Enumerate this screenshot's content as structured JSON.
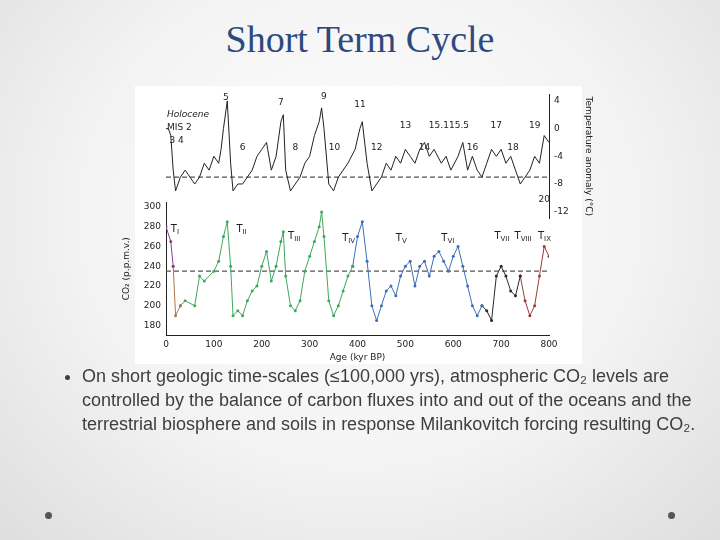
{
  "slide": {
    "title": "Short Term Cycle",
    "bullets": [
      "On short geologic time-scales (≤100,000 yrs), atmospheric CO₂ levels are controlled by the balance of carbon fluxes into and out of the oceans and the terrestrial biosphere and soils in response Milankovitch forcing resulting CO₂."
    ]
  },
  "chart_data": [
    {
      "type": "line",
      "y_label": "Temperature anomaly (°C)",
      "xlim": [
        0,
        800
      ],
      "ylim": [
        -13,
        5
      ],
      "yticks": [
        -12,
        -8,
        -4,
        0,
        4
      ],
      "grid": false,
      "tick_labels": "y",
      "series": [
        {
          "color": "#222222",
          "x": [
            0,
            5,
            10,
            15,
            20,
            25,
            30,
            40,
            50,
            60,
            70,
            80,
            90,
            100,
            110,
            115,
            120,
            128,
            135,
            140,
            150,
            160,
            170,
            180,
            190,
            200,
            210,
            220,
            230,
            240,
            245,
            250,
            260,
            270,
            280,
            290,
            300,
            310,
            320,
            325,
            330,
            340,
            350,
            360,
            370,
            380,
            395,
            405,
            410,
            420,
            430,
            440,
            450,
            460,
            470,
            480,
            490,
            500,
            510,
            520,
            530,
            540,
            550,
            560,
            575,
            585,
            595,
            610,
            620,
            630,
            640,
            650,
            660,
            670,
            680,
            690,
            700,
            710,
            720,
            730,
            740,
            750,
            760,
            770,
            780,
            790,
            800
          ],
          "values": [
            0,
            0,
            -1,
            -6,
            -9,
            -8,
            -7,
            -6,
            -7,
            -8,
            -7,
            -5,
            -6,
            -4,
            -5,
            -3,
            0,
            4,
            -5,
            -9,
            -8,
            -8,
            -7,
            -6,
            -4,
            -3,
            -2,
            -6,
            -4,
            1,
            2,
            -6,
            -9,
            -8,
            -7,
            -5,
            -4,
            -1,
            1,
            3,
            0,
            -8,
            -9,
            -7,
            -6,
            -5,
            -3,
            0,
            1,
            -5,
            -9,
            -8,
            -7,
            -5,
            -6,
            -4,
            -5,
            -3,
            -4,
            -5,
            -3,
            -2,
            -4,
            -3,
            -5,
            -4,
            -6,
            -4,
            -2,
            -6,
            -4,
            -6,
            -7,
            -5,
            -3,
            -4,
            -3,
            -5,
            -4,
            -6,
            -8,
            -7,
            -6,
            -4,
            -5,
            -1,
            -2
          ]
        },
        {
          "color": "#555555",
          "line_style": "dashed",
          "x": [
            0,
            800
          ],
          "values": [
            -7,
            -7
          ]
        }
      ],
      "annotations": [
        {
          "text": "Holocene",
          "x": 2,
          "y": 2
        },
        {
          "text": "MIS 2",
          "x": 2,
          "y": 0.2
        },
        {
          "text": "3 4",
          "x": 22,
          "y": -1.7
        },
        {
          "text": "5",
          "x": 125,
          "y": 4.5
        },
        {
          "text": "7",
          "x": 240,
          "y": 3.8
        },
        {
          "text": "9",
          "x": 330,
          "y": 4.6
        },
        {
          "text": "11",
          "x": 405,
          "y": 3.4
        },
        {
          "text": "13",
          "x": 500,
          "y": 0.4
        },
        {
          "text": "15.1",
          "x": 570,
          "y": 0.4
        },
        {
          "text": "15.5",
          "x": 612,
          "y": 0.4
        },
        {
          "text": "17",
          "x": 690,
          "y": 0.4
        },
        {
          "text": "19",
          "x": 770,
          "y": 0.4
        },
        {
          "text": "6",
          "x": 160,
          "y": -2.7
        },
        {
          "text": "8",
          "x": 270,
          "y": -2.7
        },
        {
          "text": "10",
          "x": 352,
          "y": -2.7
        },
        {
          "text": "12",
          "x": 440,
          "y": -2.7
        },
        {
          "text": "14",
          "x": 540,
          "y": -2.7
        },
        {
          "text": "16",
          "x": 640,
          "y": -2.7
        },
        {
          "text": "18",
          "x": 725,
          "y": -2.7
        },
        {
          "text": "20",
          "x": 790,
          "y": -10.3
        }
      ]
    },
    {
      "type": "line",
      "x_label": "Age (kyr BP)",
      "y_label": "CO₂ (p.p.m.v.)",
      "xlim": [
        0,
        800
      ],
      "xticks": [
        0,
        100,
        200,
        300,
        400,
        500,
        600,
        700,
        800
      ],
      "ylim": [
        170,
        305
      ],
      "yticks": [
        180,
        200,
        220,
        240,
        260,
        280,
        300
      ],
      "grid": false,
      "series": [
        {
          "color": "#8e3b91",
          "marker": "circle",
          "x": [
            0,
            10,
            15
          ],
          "values": [
            280,
            265,
            240
          ]
        },
        {
          "color": "#a7794f",
          "marker": "circle",
          "x": [
            15,
            20,
            30
          ],
          "values": [
            240,
            190,
            200
          ]
        },
        {
          "color": "#3fa85c",
          "marker": "circle",
          "x": [
            30,
            40,
            60,
            70,
            80,
            100,
            110,
            120,
            128,
            135,
            140,
            150,
            160,
            170,
            180,
            190,
            200,
            210,
            220,
            230,
            240,
            245,
            250,
            260,
            270,
            280,
            290,
            300,
            310,
            320,
            325,
            330,
            340,
            350,
            360,
            370,
            380,
            390
          ],
          "values": [
            200,
            205,
            200,
            230,
            225,
            235,
            245,
            270,
            285,
            240,
            190,
            195,
            190,
            205,
            215,
            220,
            240,
            255,
            225,
            240,
            265,
            275,
            230,
            200,
            195,
            205,
            235,
            250,
            265,
            280,
            295,
            270,
            205,
            190,
            200,
            215,
            230,
            240
          ]
        },
        {
          "color": "#3d6fb8",
          "marker": "circle",
          "x": [
            390,
            400,
            410,
            420,
            430,
            440,
            450,
            460,
            470,
            480,
            490,
            500,
            510,
            520,
            530,
            540,
            550,
            560,
            570,
            580,
            590,
            600,
            610,
            620,
            630,
            640,
            650,
            660
          ],
          "values": [
            240,
            270,
            285,
            245,
            200,
            185,
            200,
            215,
            220,
            210,
            230,
            240,
            245,
            220,
            240,
            245,
            230,
            250,
            255,
            245,
            235,
            250,
            260,
            240,
            220,
            200,
            190,
            200
          ]
        },
        {
          "color": "#2a2a2a",
          "marker": "circle",
          "x": [
            660,
            670,
            680,
            690,
            700,
            710,
            720,
            730,
            740
          ],
          "values": [
            200,
            195,
            185,
            230,
            240,
            230,
            215,
            210,
            230
          ]
        },
        {
          "color": "#9b3b3b",
          "marker": "circle",
          "x": [
            740,
            750,
            760,
            770,
            780,
            790,
            800
          ],
          "values": [
            230,
            205,
            190,
            200,
            230,
            260,
            250
          ]
        },
        {
          "color": "#555555",
          "line_style": "dashed",
          "x": [
            0,
            800
          ],
          "values": [
            235,
            235
          ]
        }
      ],
      "annotations": [
        {
          "text": "TI",
          "x": 10,
          "y": 277
        },
        {
          "text": "TII",
          "x": 147,
          "y": 277
        },
        {
          "text": "TIII",
          "x": 255,
          "y": 270
        },
        {
          "text": "TIV",
          "x": 368,
          "y": 268
        },
        {
          "text": "TV",
          "x": 480,
          "y": 268
        },
        {
          "text": "TVI",
          "x": 575,
          "y": 268
        },
        {
          "text": "TVII",
          "x": 686,
          "y": 270
        },
        {
          "text": "TVIII",
          "x": 728,
          "y": 270
        },
        {
          "text": "TIX",
          "x": 777,
          "y": 270
        }
      ]
    }
  ]
}
